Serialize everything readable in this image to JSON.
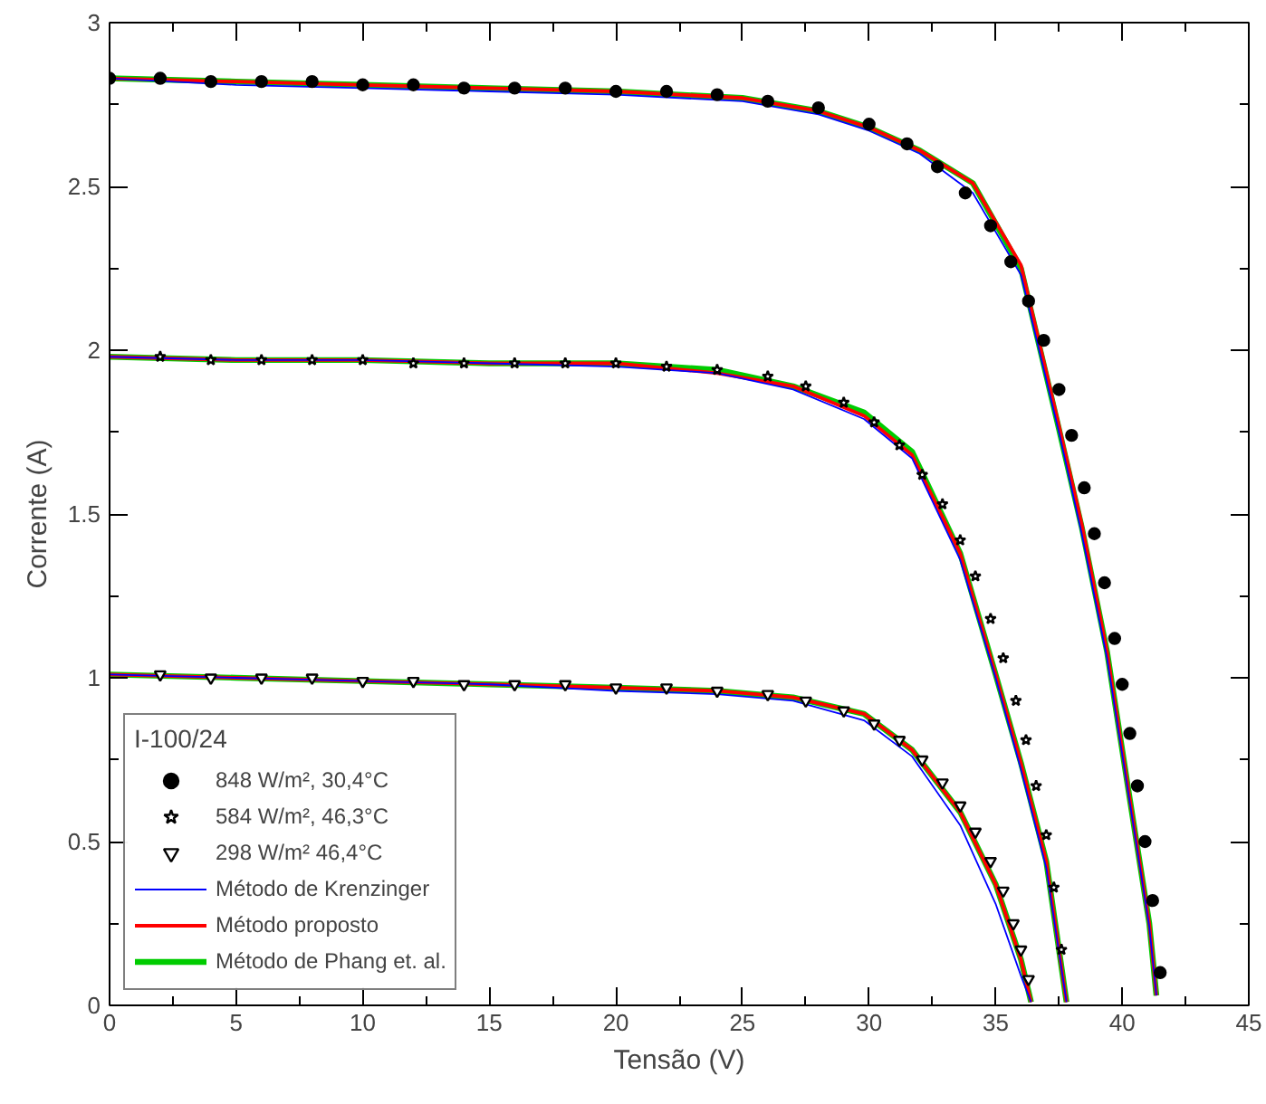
{
  "chart_data": {
    "type": "line",
    "xlabel": "Tensão (V)",
    "ylabel": "Corrente (A)",
    "legend_title": "I-100/24",
    "legend": "bottom left",
    "grid": false,
    "xlim": [
      0,
      45
    ],
    "ylim": [
      0,
      3
    ],
    "xticks": [
      0,
      5,
      10,
      15,
      20,
      25,
      30,
      35,
      40,
      45
    ],
    "yticks": [
      0,
      0.5,
      1,
      1.5,
      2,
      2.5,
      3
    ],
    "series": [
      {
        "name": "848 W/m², 30,4°C",
        "type": "scatter",
        "marker": "circle",
        "color": "#000000",
        "x": [
          0,
          2,
          4,
          6,
          8,
          10,
          12,
          14,
          16,
          18,
          20,
          22,
          24,
          26,
          28,
          30,
          31.5,
          32.7,
          33.8,
          34.8,
          35.6,
          36.3,
          36.9,
          37.5,
          38.0,
          38.5,
          38.9,
          39.3,
          39.7,
          40.0,
          40.3,
          40.6,
          40.9,
          41.2,
          41.5
        ],
        "values": [
          2.83,
          2.83,
          2.82,
          2.82,
          2.82,
          2.81,
          2.81,
          2.8,
          2.8,
          2.8,
          2.79,
          2.79,
          2.78,
          2.76,
          2.74,
          2.69,
          2.63,
          2.56,
          2.48,
          2.38,
          2.27,
          2.15,
          2.03,
          1.88,
          1.74,
          1.58,
          1.44,
          1.29,
          1.12,
          0.98,
          0.83,
          0.67,
          0.5,
          0.32,
          0.1
        ]
      },
      {
        "name": "584 W/m², 46,3°C",
        "type": "scatter",
        "marker": "star",
        "color": "#000000",
        "x": [
          2,
          4,
          6,
          8,
          10,
          12,
          14,
          16,
          18,
          20,
          22,
          24,
          26,
          27.5,
          29,
          30.2,
          31.2,
          32.1,
          32.9,
          33.6,
          34.2,
          34.8,
          35.3,
          35.8,
          36.2,
          36.6,
          37.0,
          37.3,
          37.6
        ],
        "values": [
          1.98,
          1.97,
          1.97,
          1.97,
          1.97,
          1.96,
          1.96,
          1.96,
          1.96,
          1.96,
          1.95,
          1.94,
          1.92,
          1.89,
          1.84,
          1.78,
          1.71,
          1.62,
          1.53,
          1.42,
          1.31,
          1.18,
          1.06,
          0.93,
          0.81,
          0.67,
          0.52,
          0.36,
          0.17
        ]
      },
      {
        "name": "298 W/m² 46,4°C",
        "type": "scatter",
        "marker": "triangle",
        "color": "#000000",
        "x": [
          2,
          4,
          6,
          8,
          10,
          12,
          14,
          16,
          18,
          20,
          22,
          24,
          26,
          27.5,
          29,
          30.2,
          31.2,
          32.1,
          32.9,
          33.6,
          34.2,
          34.8,
          35.3,
          35.7,
          36.0,
          36.3
        ],
        "values": [
          1.01,
          1.0,
          1.0,
          1.0,
          0.99,
          0.99,
          0.98,
          0.98,
          0.98,
          0.97,
          0.97,
          0.96,
          0.95,
          0.93,
          0.9,
          0.86,
          0.81,
          0.75,
          0.68,
          0.61,
          0.53,
          0.44,
          0.35,
          0.25,
          0.17,
          0.08
        ]
      },
      {
        "name": "Método de Krenzinger",
        "color": "#0000ff",
        "x": [
          0,
          5,
          10,
          15,
          20,
          25,
          28,
          30,
          32,
          34.1,
          36.0,
          37.5,
          38.4,
          39.4,
          40.3,
          41.07,
          41.35,
          null,
          0,
          5,
          10,
          15,
          20,
          24,
          27,
          29.8,
          31.7,
          33.6,
          35.0,
          36.0,
          37.0,
          37.8,
          null,
          0,
          5,
          10,
          15,
          20,
          24,
          27,
          29.8,
          31.7,
          33.6,
          35.0,
          36.0,
          36.4
        ],
        "values": [
          2.83,
          2.81,
          2.8,
          2.79,
          2.78,
          2.76,
          2.72,
          2.67,
          2.6,
          2.48,
          2.23,
          1.75,
          1.44,
          1.06,
          0.62,
          0.24,
          0.03,
          null,
          1.98,
          1.97,
          1.97,
          1.96,
          1.95,
          1.93,
          1.88,
          1.79,
          1.67,
          1.36,
          1.0,
          0.72,
          0.42,
          0.01,
          null,
          1.01,
          1.0,
          0.99,
          0.98,
          0.96,
          0.95,
          0.93,
          0.87,
          0.76,
          0.55,
          0.31,
          0.09,
          0.01
        ]
      },
      {
        "name": "Método proposto",
        "color": "#ff0000",
        "x": [
          0,
          5,
          10,
          15,
          20,
          25,
          28,
          30,
          32,
          34.1,
          36.0,
          37.5,
          38.4,
          39.4,
          40.3,
          41.07,
          41.35,
          null,
          0,
          5,
          10,
          15,
          20,
          24,
          27,
          29.8,
          31.7,
          33.6,
          35.0,
          36.0,
          37.0,
          37.8,
          null,
          0,
          5,
          10,
          15,
          20,
          24,
          27,
          29.8,
          31.7,
          33.6,
          35.0,
          36.0,
          36.4
        ],
        "values": [
          2.83,
          2.82,
          2.81,
          2.8,
          2.79,
          2.77,
          2.73,
          2.68,
          2.61,
          2.51,
          2.26,
          1.77,
          1.47,
          1.08,
          0.63,
          0.25,
          0.03,
          null,
          1.98,
          1.97,
          1.97,
          1.96,
          1.96,
          1.93,
          1.89,
          1.8,
          1.68,
          1.38,
          1.01,
          0.74,
          0.44,
          0.01,
          null,
          1.01,
          1.0,
          0.99,
          0.98,
          0.97,
          0.96,
          0.94,
          0.89,
          0.78,
          0.59,
          0.37,
          0.14,
          0.01
        ]
      },
      {
        "name": "Método de Phang et. al.",
        "color": "#00cc00",
        "x": [
          0,
          5,
          10,
          15,
          20,
          25,
          28,
          30,
          32,
          34.1,
          36.0,
          37.5,
          38.4,
          39.4,
          40.3,
          41.07,
          41.35,
          null,
          0,
          5,
          10,
          15,
          20,
          24,
          27,
          29.8,
          31.7,
          33.6,
          35.0,
          36.0,
          37.0,
          37.8,
          null,
          0,
          5,
          10,
          15,
          20,
          24,
          27,
          29.8,
          31.7,
          33.6,
          35.0,
          36.0,
          36.4
        ],
        "values": [
          2.83,
          2.82,
          2.81,
          2.8,
          2.79,
          2.77,
          2.73,
          2.68,
          2.61,
          2.51,
          2.25,
          1.76,
          1.46,
          1.08,
          0.63,
          0.25,
          0.03,
          null,
          1.98,
          1.97,
          1.97,
          1.96,
          1.96,
          1.94,
          1.89,
          1.81,
          1.69,
          1.38,
          1.01,
          0.74,
          0.44,
          0.01,
          null,
          1.01,
          1.0,
          0.99,
          0.98,
          0.97,
          0.96,
          0.94,
          0.89,
          0.78,
          0.59,
          0.37,
          0.14,
          0.01
        ]
      }
    ]
  }
}
